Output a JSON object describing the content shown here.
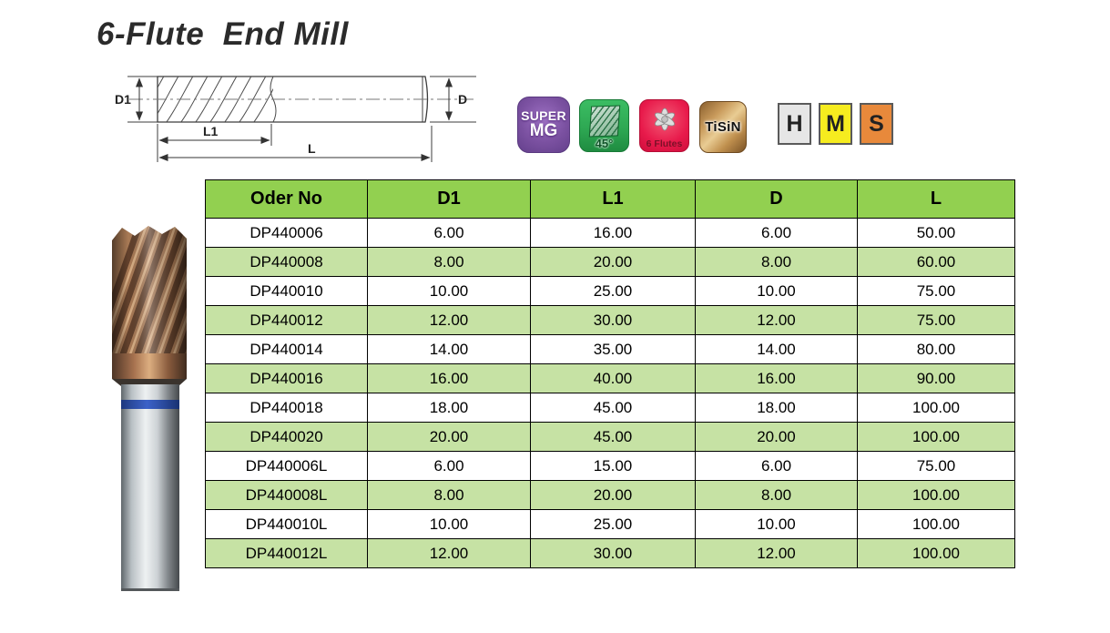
{
  "page": {
    "title": "6-Flute  End Mill"
  },
  "diagram": {
    "labels": {
      "d1": "D1",
      "l1": "L1",
      "l": "L",
      "d": "D"
    }
  },
  "badges": {
    "super_mg": {
      "line1": "SUPER",
      "line2": "MG",
      "color": "#7b51a1"
    },
    "angle45": {
      "label": "45°",
      "color": "#2ea853"
    },
    "six_flutes": {
      "label": "6 Flutes",
      "color": "#e81a4b"
    },
    "tisin": {
      "label": "TiSiN",
      "color": "#c89a5e"
    },
    "hms": [
      {
        "label": "H",
        "color": "#e6e6e6"
      },
      {
        "label": "M",
        "color": "#f6ec1f"
      },
      {
        "label": "S",
        "color": "#e8893b"
      }
    ]
  },
  "table": {
    "header_color": "#92d050",
    "alt_row_color": "#c6e2a4",
    "columns": [
      "Oder No",
      "D1",
      "L1",
      "D",
      "L"
    ],
    "rows": [
      [
        "DP440006",
        "6.00",
        "16.00",
        "6.00",
        "50.00"
      ],
      [
        "DP440008",
        "8.00",
        "20.00",
        "8.00",
        "60.00"
      ],
      [
        "DP440010",
        "10.00",
        "25.00",
        "10.00",
        "75.00"
      ],
      [
        "DP440012",
        "12.00",
        "30.00",
        "12.00",
        "75.00"
      ],
      [
        "DP440014",
        "14.00",
        "35.00",
        "14.00",
        "80.00"
      ],
      [
        "DP440016",
        "16.00",
        "40.00",
        "16.00",
        "90.00"
      ],
      [
        "DP440018",
        "18.00",
        "45.00",
        "18.00",
        "100.00"
      ],
      [
        "DP440020",
        "20.00",
        "45.00",
        "20.00",
        "100.00"
      ],
      [
        "DP440006L",
        "6.00",
        "15.00",
        "6.00",
        "75.00"
      ],
      [
        "DP440008L",
        "8.00",
        "20.00",
        "8.00",
        "100.00"
      ],
      [
        "DP440010L",
        "10.00",
        "25.00",
        "10.00",
        "100.00"
      ],
      [
        "DP440012L",
        "12.00",
        "30.00",
        "12.00",
        "100.00"
      ]
    ]
  }
}
